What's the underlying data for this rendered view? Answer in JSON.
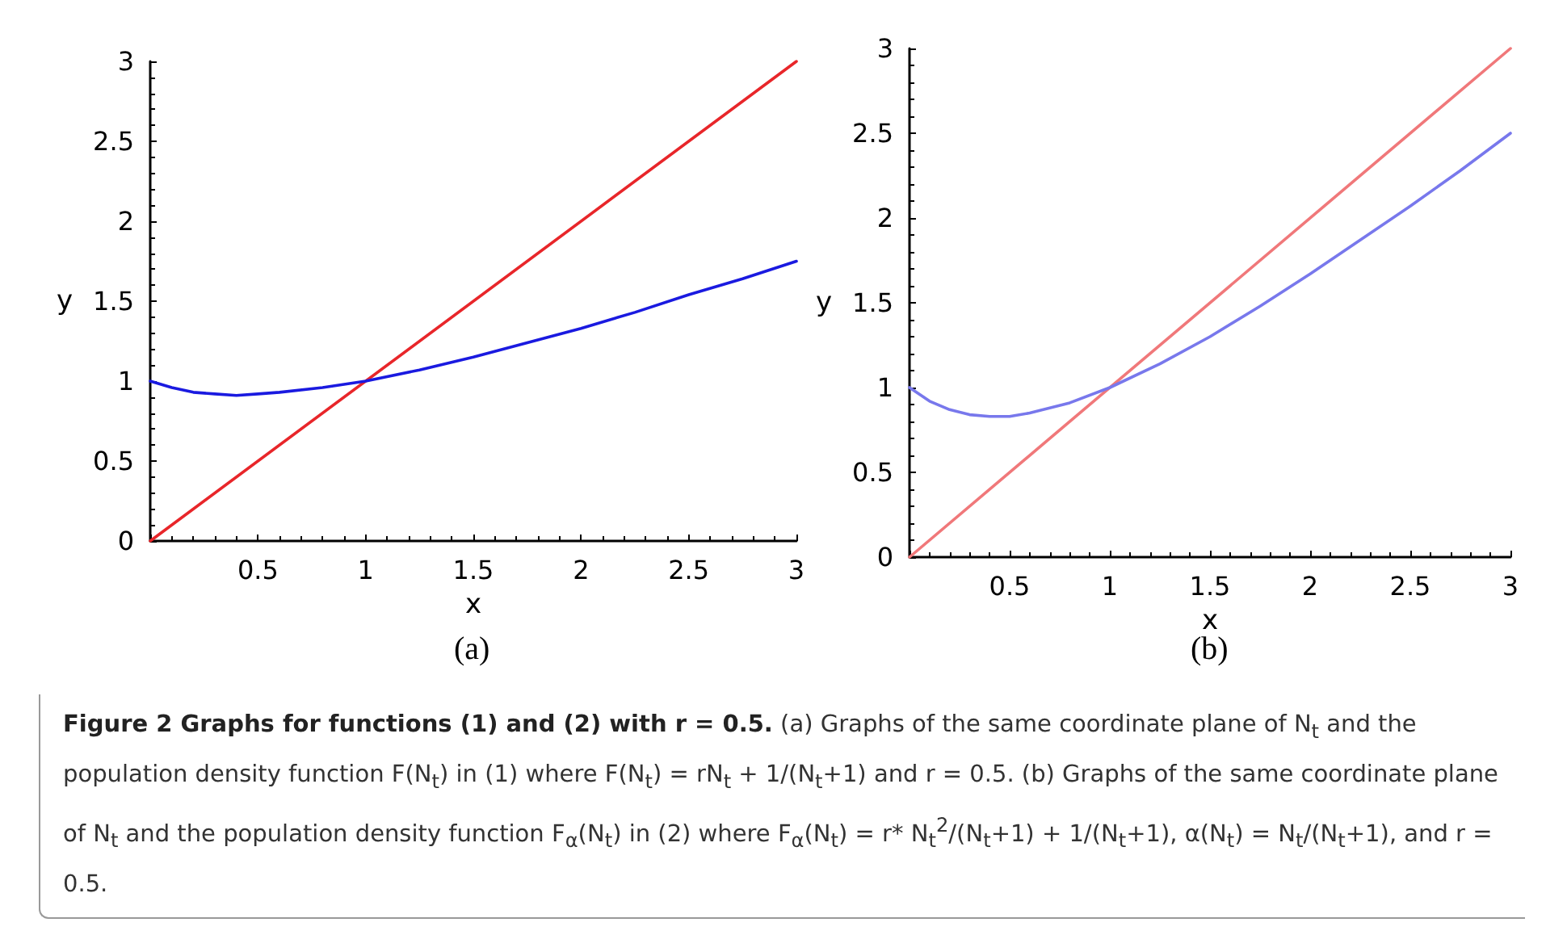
{
  "chart_data": [
    {
      "type": "line",
      "xlabel": "x",
      "ylabel": "y",
      "xlim": [
        0,
        3
      ],
      "ylim": [
        0,
        3
      ],
      "xticks": [
        {
          "value": 0,
          "label": null
        },
        0.5,
        1,
        1.5,
        2,
        2.5,
        3
      ],
      "yticks": [
        0,
        0.5,
        1,
        1.5,
        2,
        2.5,
        3
      ],
      "grid": false,
      "marker": "none",
      "line_style": "solid",
      "annotations": [
        "(a)",
        "Figure 2  Graphs for functions (1) and (2) with r = 0.5.",
        "(a) Graphs of the same coordinate plane of N$_{t}$ and the population density function F(N$_{t}$) in (1) where F(N$_{t}$) = rN$_{t}$ + 1/(N$_{t}$+1) and r = 0.5.",
        "(b) Graphs of the same coordinate plane of N$_{t}$ and the population density function F$_{α}$(N$_{t}$) in (2) where F$_{α}$(N$_{t}$) = r* N$_{t}$$^{2}$/(N$_{t}$+1) + 1/(N$_{t}$+1), α(N$_{t}$) = N$_{t}$/(N$_{t}$+1), and r = 0.5."
      ],
      "series": [
        {
          "color": "#e8262a",
          "x": [
            0,
            3
          ],
          "values": [
            0,
            3
          ]
        },
        {
          "color": "#1a1ae0",
          "x": [
            0,
            0.1,
            0.2,
            0.3,
            0.4,
            0.5,
            0.6,
            0.8,
            1,
            1.25,
            1.5,
            1.75,
            2,
            2.25,
            2.5,
            2.75,
            3
          ],
          "values": [
            1,
            0.96,
            0.93,
            0.92,
            0.91,
            0.92,
            0.93,
            0.96,
            1,
            1.07,
            1.15,
            1.24,
            1.33,
            1.43,
            1.54,
            1.64,
            1.75
          ]
        }
      ]
    },
    {
      "type": "line",
      "xlabel": "x",
      "ylabel": "y",
      "xlim": [
        0,
        3
      ],
      "ylim": [
        0,
        3
      ],
      "xticks": [
        {
          "value": 0,
          "label": null
        },
        0.5,
        1,
        1.5,
        2,
        2.5,
        3
      ],
      "yticks": [
        0,
        0.5,
        1,
        1.5,
        2,
        2.5,
        3
      ],
      "grid": false,
      "marker": "none",
      "line_style": "solid",
      "annotations": [
        "(b)"
      ],
      "series": [
        {
          "color": "#f0787a",
          "x": [
            0,
            3
          ],
          "values": [
            0,
            3
          ]
        },
        {
          "color": "#7878ec",
          "x": [
            0,
            0.1,
            0.2,
            0.3,
            0.4,
            0.5,
            0.6,
            0.8,
            1,
            1.25,
            1.5,
            1.75,
            2,
            2.25,
            2.5,
            2.75,
            3
          ],
          "values": [
            1,
            0.92,
            0.87,
            0.84,
            0.83,
            0.83,
            0.85,
            0.91,
            1,
            1.14,
            1.3,
            1.48,
            1.67,
            1.87,
            2.07,
            2.28,
            2.5
          ]
        }
      ]
    }
  ]
}
